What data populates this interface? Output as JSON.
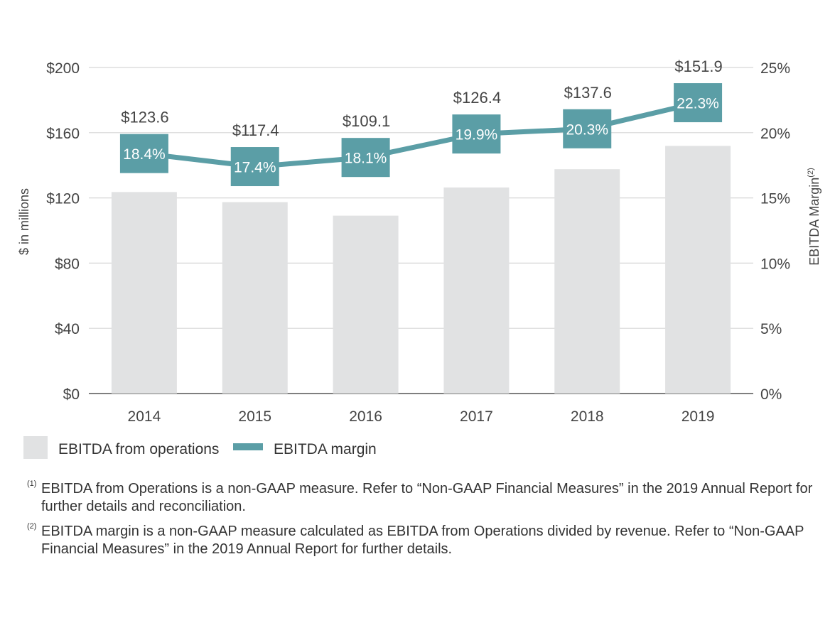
{
  "chart_data": {
    "type": "bar",
    "categories": [
      "2014",
      "2015",
      "2016",
      "2017",
      "2018",
      "2019"
    ],
    "series": [
      {
        "name": "EBITDA from operations",
        "type": "bar",
        "axis": "left",
        "values": [
          123.6,
          117.4,
          109.1,
          126.4,
          137.6,
          151.9
        ],
        "labels": [
          "$123.6",
          "$117.4",
          "$109.1",
          "$126.4",
          "$137.6",
          "$151.9"
        ]
      },
      {
        "name": "EBITDA margin",
        "type": "line",
        "axis": "right",
        "values": [
          18.4,
          17.4,
          18.1,
          19.9,
          20.3,
          22.3
        ],
        "labels": [
          "18.4%",
          "17.4%",
          "18.1%",
          "19.9%",
          "20.3%",
          "22.3%"
        ]
      }
    ],
    "ylabel": "$ in millions",
    "ylabel_right": "EBITDA Margin",
    "ylabel_right_sup": "(2)",
    "ylim": [
      0,
      200
    ],
    "ylim_right": [
      0,
      25
    ],
    "yticks": [
      "$0",
      "$40",
      "$80",
      "$120",
      "$160",
      "$200"
    ],
    "yticks_right": [
      "0%",
      "5%",
      "10%",
      "15%",
      "20%",
      "25%"
    ],
    "grid": true,
    "legend_position": "bottom-left",
    "colors": {
      "bar": "#e1e2e3",
      "line": "#5b9ea6",
      "grid": "#d6d6d6",
      "axis": "#555555"
    }
  },
  "footnotes": [
    {
      "marker": "(1)",
      "text": "EBITDA from Operations is a non-GAAP measure. Refer to “Non-GAAP Financial Measures” in the 2019 Annual Report for further details and reconciliation."
    },
    {
      "marker": "(2)",
      "text": "EBITDA margin is a non-GAAP measure calculated as EBITDA from Operations divided by revenue. Refer to “Non-GAAP Financial Measures” in the 2019 Annual Report for further details."
    }
  ]
}
